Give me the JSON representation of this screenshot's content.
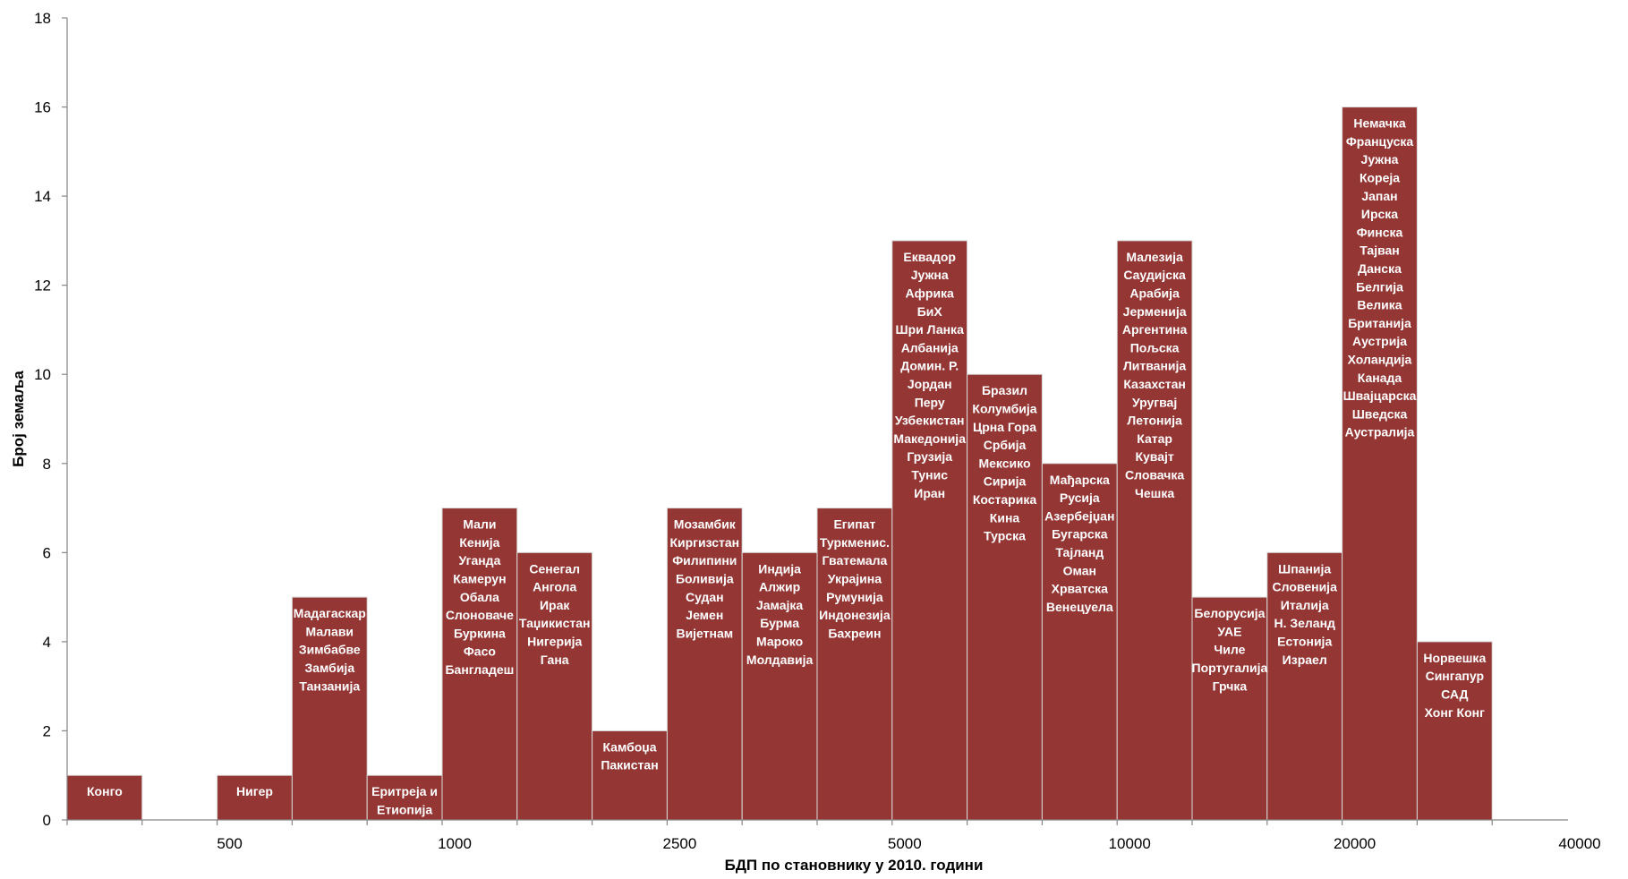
{
  "chart_data": {
    "type": "bar",
    "title": "",
    "xlabel": "БДП по становнику у 2010. години",
    "ylabel": "Број земаља",
    "ylim": [
      0,
      18
    ],
    "y_ticks": [
      "0",
      "2",
      "4",
      "6",
      "8",
      "10",
      "12",
      "14",
      "16",
      "18"
    ],
    "x_tick_labels": [
      "500",
      "1000",
      "2500",
      "5000",
      "10000",
      "20000",
      "40000"
    ],
    "grid": false,
    "legend": "none",
    "bar_color": "#943634",
    "bars": [
      {
        "value": 1,
        "countries": [
          "Конго"
        ]
      },
      {
        "value": 0,
        "countries": []
      },
      {
        "value": 1,
        "countries": [
          "Нигер"
        ]
      },
      {
        "value": 5,
        "countries": [
          "Мадагаскар",
          "Малави",
          "Зимбабве",
          "Замбија",
          "Танзанија"
        ]
      },
      {
        "value": 1,
        "countries": [
          "Еритреја и",
          "Етиопија"
        ]
      },
      {
        "value": 7,
        "countries": [
          "Мали",
          "Кенија",
          "Уганда",
          "Камерун",
          "Обала",
          "Слоноваче",
          "Буркина",
          "Фасо",
          "Бангладеш"
        ]
      },
      {
        "value": 6,
        "countries": [
          "Сенегал",
          "Ангола",
          "Ирак",
          "Таџикистан",
          "Нигерија",
          "Гана"
        ]
      },
      {
        "value": 2,
        "countries": [
          "Камбоџа",
          "Пакистан"
        ]
      },
      {
        "value": 7,
        "countries": [
          "Мозамбик",
          "Киргизстан",
          "Филипини",
          "Боливија",
          "Судан",
          "Јемен",
          "Вијетнам"
        ]
      },
      {
        "value": 6,
        "countries": [
          "Индија",
          "Алжир",
          "Јамајка",
          "Бурма",
          "Мароко",
          "Молдавија"
        ]
      },
      {
        "value": 7,
        "countries": [
          "Египат",
          "Туркменис.",
          "Гватемала",
          "Украјина",
          "Румунија",
          "Индонезија",
          "Бахреин"
        ]
      },
      {
        "value": 13,
        "countries": [
          "Еквадор",
          "Јужна",
          "Африка",
          "БиХ",
          "Шри Ланка",
          "Албанија",
          "Домин. Р.",
          "Јордан",
          "Перу",
          "Узбекистан",
          "Македонија",
          "Грузија",
          "Тунис",
          "Иран"
        ]
      },
      {
        "value": 10,
        "countries": [
          "Бразил",
          "Колумбија",
          "Црна Гора",
          "Србија",
          "Мексико",
          "Сирија",
          "Костарика",
          "Кина",
          "Турска"
        ]
      },
      {
        "value": 8,
        "countries": [
          "Мађарска",
          "Русија",
          "Азербејџан",
          "Бугарска",
          "Тајланд",
          "Оман",
          "Хрватска",
          "Венецуела"
        ]
      },
      {
        "value": 13,
        "countries": [
          "Малезија",
          "Саудијска",
          "Арабија",
          "Јерменија",
          "Аргентина",
          "Пољска",
          "Литванија",
          "Казахстан",
          "Уругвај",
          "Летонија",
          "Катар",
          "Кувајт",
          "Словачка",
          "Чешка"
        ]
      },
      {
        "value": 5,
        "countries": [
          "Белорусија",
          "УАЕ",
          "Чиле",
          "Португалија",
          "Грчка"
        ]
      },
      {
        "value": 6,
        "countries": [
          "Шпанија",
          "Словенија",
          "Италија",
          "Н. Зеланд",
          "Естонија",
          "Израел"
        ]
      },
      {
        "value": 16,
        "countries": [
          "Немачка",
          "Француска",
          "Јужна",
          "Кореја",
          "Јапан",
          "Ирска",
          "Финска",
          "Тајван",
          "Данска",
          "Белгија",
          "Велика",
          "Британија",
          "Аустрија",
          "Холандија",
          "Канада",
          "Швајцарска",
          "Шведска",
          "Аустралија"
        ]
      },
      {
        "value": 4,
        "countries": [
          "Норвешка",
          "Сингапур",
          "САД",
          "Хонг Конг"
        ]
      }
    ]
  }
}
